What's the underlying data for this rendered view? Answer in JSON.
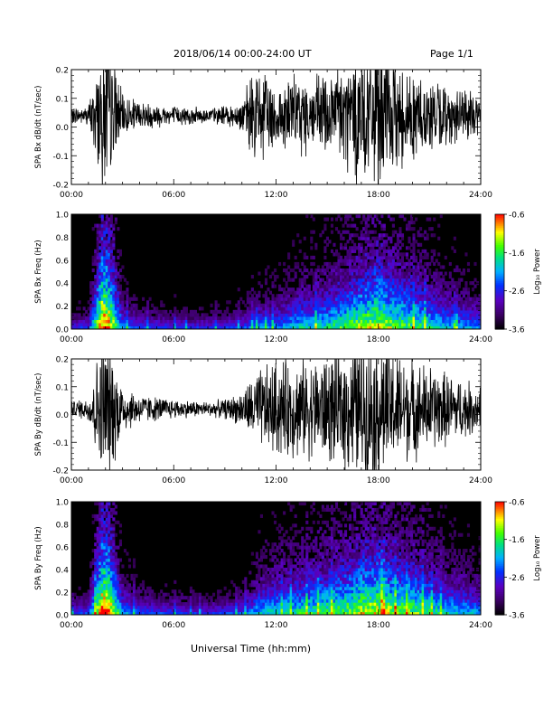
{
  "header": {
    "title": "2018/06/14  00:00-24:00 UT",
    "page_label": "Page 1/1",
    "xlabel": "Universal Time (hh:mm)"
  },
  "chart_data": [
    {
      "type": "line",
      "ylabel": "SPA Bx dB/dt (nT/sec)",
      "xlim": [
        0,
        24
      ],
      "ylim": [
        -0.2,
        0.2
      ],
      "x_ticks": [
        "00:00",
        "06:00",
        "12:00",
        "18:00",
        "24:00"
      ],
      "y_ticks": [
        "-0.2",
        "-0.1",
        "0.0",
        "0.1",
        "0.2"
      ],
      "baseline": 0.04,
      "envelope_hours": [
        0,
        1,
        1.8,
        2.2,
        3,
        4,
        5,
        6,
        7,
        8,
        9,
        10,
        10.5,
        11,
        12,
        13,
        14,
        15,
        16,
        17,
        18,
        19,
        20,
        21,
        22,
        23,
        24
      ],
      "envelope_amplitude": [
        0.03,
        0.04,
        0.3,
        0.3,
        0.08,
        0.06,
        0.05,
        0.04,
        0.035,
        0.03,
        0.04,
        0.06,
        0.15,
        0.2,
        0.13,
        0.16,
        0.15,
        0.18,
        0.22,
        0.3,
        0.3,
        0.22,
        0.18,
        0.15,
        0.12,
        0.1,
        0.09
      ]
    },
    {
      "type": "heatmap",
      "ylabel": "SPA Bx Freq (Hz)",
      "xlim": [
        0,
        24
      ],
      "ylim": [
        0,
        1.0
      ],
      "x_ticks": [
        "00:00",
        "06:00",
        "12:00",
        "18:00",
        "24:00"
      ],
      "y_ticks": [
        "0.0",
        "0.2",
        "0.4",
        "0.6",
        "0.8",
        "1.0"
      ],
      "colorbar_label": "Log₁₀ Power",
      "colorbar_ticks": [
        "-0.6",
        "-1.6",
        "-2.6",
        "-3.6"
      ],
      "colorbar_range": [
        -3.6,
        -0.6
      ],
      "activity_hours": [
        0,
        1,
        1.8,
        2.2,
        3,
        4,
        5,
        6,
        7,
        8,
        9,
        10,
        10.5,
        11,
        12,
        13,
        14,
        15,
        16,
        17,
        18,
        19,
        20,
        21,
        22,
        23,
        24
      ],
      "activity": [
        0.05,
        0.08,
        0.9,
        0.85,
        0.2,
        0.1,
        0.08,
        0.06,
        0.05,
        0.05,
        0.06,
        0.1,
        0.15,
        0.2,
        0.2,
        0.3,
        0.35,
        0.4,
        0.5,
        0.6,
        0.7,
        0.55,
        0.5,
        0.4,
        0.3,
        0.25,
        0.2
      ]
    },
    {
      "type": "line",
      "ylabel": "SPA By dB/dt (nT/sec)",
      "xlim": [
        0,
        24
      ],
      "ylim": [
        -0.2,
        0.2
      ],
      "x_ticks": [
        "00:00",
        "06:00",
        "12:00",
        "18:00",
        "24:00"
      ],
      "y_ticks": [
        "-0.2",
        "-0.1",
        "0.0",
        "0.1",
        "0.2"
      ],
      "baseline": 0.02,
      "envelope_hours": [
        0,
        1,
        1.8,
        2.2,
        3,
        4,
        5,
        6,
        7,
        8,
        9,
        10,
        10.5,
        11,
        12,
        13,
        14,
        15,
        16,
        17,
        18,
        19,
        20,
        21,
        22,
        23,
        24
      ],
      "envelope_amplitude": [
        0.03,
        0.05,
        0.3,
        0.3,
        0.1,
        0.06,
        0.05,
        0.04,
        0.035,
        0.03,
        0.04,
        0.07,
        0.12,
        0.16,
        0.2,
        0.2,
        0.2,
        0.22,
        0.25,
        0.3,
        0.3,
        0.25,
        0.2,
        0.18,
        0.15,
        0.12,
        0.1
      ]
    },
    {
      "type": "heatmap",
      "ylabel": "SPA By Freq (Hz)",
      "xlim": [
        0,
        24
      ],
      "ylim": [
        0,
        1.0
      ],
      "x_ticks": [
        "00:00",
        "06:00",
        "12:00",
        "18:00",
        "24:00"
      ],
      "y_ticks": [
        "0.0",
        "0.2",
        "0.4",
        "0.6",
        "0.8",
        "1.0"
      ],
      "colorbar_label": "Log₁₀ Power",
      "colorbar_ticks": [
        "-0.6",
        "-1.6",
        "-2.6",
        "-3.6"
      ],
      "colorbar_range": [
        -3.6,
        -0.6
      ],
      "activity_hours": [
        0,
        1,
        1.8,
        2.2,
        3,
        4,
        5,
        6,
        7,
        8,
        9,
        10,
        10.5,
        11,
        12,
        13,
        14,
        15,
        16,
        17,
        18,
        19,
        20,
        21,
        22,
        23,
        24
      ],
      "activity": [
        0.06,
        0.1,
        0.9,
        0.85,
        0.25,
        0.12,
        0.1,
        0.08,
        0.07,
        0.06,
        0.08,
        0.12,
        0.2,
        0.3,
        0.35,
        0.4,
        0.45,
        0.5,
        0.55,
        0.65,
        0.7,
        0.6,
        0.55,
        0.45,
        0.35,
        0.3,
        0.25
      ]
    }
  ]
}
